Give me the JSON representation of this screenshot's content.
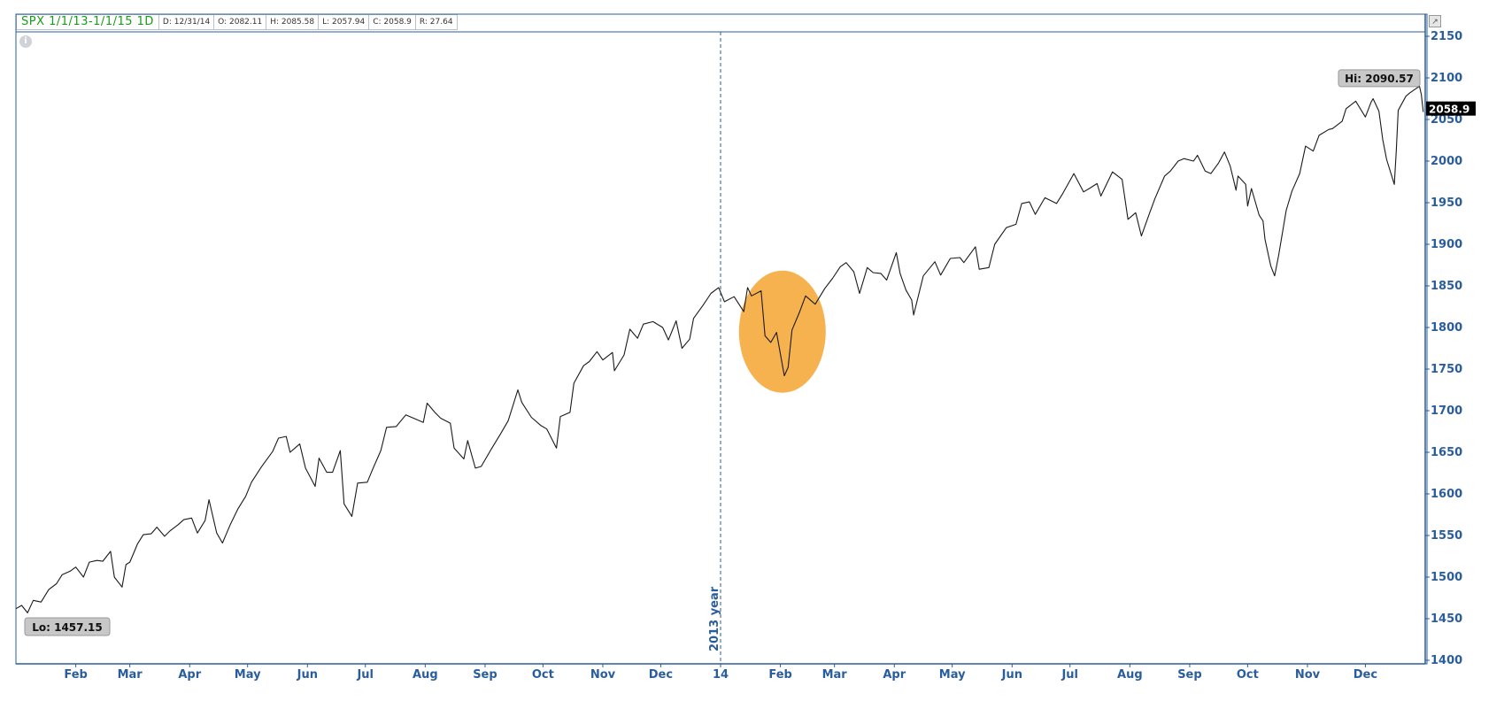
{
  "header": {
    "symbol_range": "SPX 1/1/13-1/1/15 1D",
    "date": "D: 12/31/14",
    "open": "O: 2082.11",
    "high": "H: 2085.58",
    "low": "L: 2057.94",
    "close": "C: 2058.9",
    "range": "R: 27.64"
  },
  "markers": {
    "hi_label": "Hi: 2090.57",
    "lo_label": "Lo: 1457.15",
    "last_price": "2058.9",
    "divider_label": "2013 year"
  },
  "colors": {
    "axis": "#2a5d9c",
    "line": "#1a1a1a",
    "highlight": "#f6a531",
    "header_green": "#1a9a1a"
  },
  "chart_data": {
    "type": "line",
    "title": "",
    "xlabel": "",
    "ylabel": "",
    "ylim": [
      1400,
      2150
    ],
    "yticks": [
      1400,
      1450,
      1500,
      1550,
      1600,
      1650,
      1700,
      1750,
      1800,
      1850,
      1900,
      1950,
      2000,
      2050,
      2100,
      2150
    ],
    "x_range": [
      "2013-01-01",
      "2015-01-01"
    ],
    "xtick_labels": [
      {
        "date": "2013-02-01",
        "label": "Feb"
      },
      {
        "date": "2013-03-01",
        "label": "Mar"
      },
      {
        "date": "2013-04-01",
        "label": "Apr"
      },
      {
        "date": "2013-05-01",
        "label": "May"
      },
      {
        "date": "2013-06-01",
        "label": "Jun"
      },
      {
        "date": "2013-07-01",
        "label": "Jul"
      },
      {
        "date": "2013-08-01",
        "label": "Aug"
      },
      {
        "date": "2013-09-01",
        "label": "Sep"
      },
      {
        "date": "2013-10-01",
        "label": "Oct"
      },
      {
        "date": "2013-11-01",
        "label": "Nov"
      },
      {
        "date": "2013-12-01",
        "label": "Dec"
      },
      {
        "date": "2014-01-01",
        "label": "14"
      },
      {
        "date": "2014-02-01",
        "label": "Feb"
      },
      {
        "date": "2014-03-01",
        "label": "Mar"
      },
      {
        "date": "2014-04-01",
        "label": "Apr"
      },
      {
        "date": "2014-05-01",
        "label": "May"
      },
      {
        "date": "2014-06-01",
        "label": "Jun"
      },
      {
        "date": "2014-07-01",
        "label": "Jul"
      },
      {
        "date": "2014-08-01",
        "label": "Aug"
      },
      {
        "date": "2014-09-01",
        "label": "Sep"
      },
      {
        "date": "2014-10-01",
        "label": "Oct"
      },
      {
        "date": "2014-11-01",
        "label": "Nov"
      },
      {
        "date": "2014-12-01",
        "label": "Dec"
      }
    ],
    "series": [
      {
        "points": [
          [
            "2013-01-01",
            1462
          ],
          [
            "2013-01-04",
            1466
          ],
          [
            "2013-01-07",
            1457
          ],
          [
            "2013-01-10",
            1472
          ],
          [
            "2013-01-14",
            1470
          ],
          [
            "2013-01-18",
            1485
          ],
          [
            "2013-01-22",
            1492
          ],
          [
            "2013-01-25",
            1503
          ],
          [
            "2013-01-29",
            1507
          ],
          [
            "2013-02-01",
            1512
          ],
          [
            "2013-02-05",
            1500
          ],
          [
            "2013-02-08",
            1518
          ],
          [
            "2013-02-12",
            1520
          ],
          [
            "2013-02-15",
            1519
          ],
          [
            "2013-02-19",
            1531
          ],
          [
            "2013-02-21",
            1500
          ],
          [
            "2013-02-25",
            1488
          ],
          [
            "2013-02-27",
            1515
          ],
          [
            "2013-03-01",
            1518
          ],
          [
            "2013-03-05",
            1540
          ],
          [
            "2013-03-08",
            1551
          ],
          [
            "2013-03-12",
            1552
          ],
          [
            "2013-03-15",
            1560
          ],
          [
            "2013-03-19",
            1549
          ],
          [
            "2013-03-22",
            1556
          ],
          [
            "2013-03-26",
            1563
          ],
          [
            "2013-03-29",
            1569
          ],
          [
            "2013-04-02",
            1571
          ],
          [
            "2013-04-05",
            1553
          ],
          [
            "2013-04-09",
            1568
          ],
          [
            "2013-04-11",
            1593
          ],
          [
            "2013-04-15",
            1553
          ],
          [
            "2013-04-18",
            1541
          ],
          [
            "2013-04-22",
            1563
          ],
          [
            "2013-04-26",
            1582
          ],
          [
            "2013-04-30",
            1597
          ],
          [
            "2013-05-03",
            1614
          ],
          [
            "2013-05-08",
            1632
          ],
          [
            "2013-05-14",
            1651
          ],
          [
            "2013-05-17",
            1667
          ],
          [
            "2013-05-21",
            1669
          ],
          [
            "2013-05-23",
            1650
          ],
          [
            "2013-05-28",
            1660
          ],
          [
            "2013-05-31",
            1631
          ],
          [
            "2013-06-05",
            1609
          ],
          [
            "2013-06-07",
            1643
          ],
          [
            "2013-06-11",
            1626
          ],
          [
            "2013-06-14",
            1626
          ],
          [
            "2013-06-18",
            1652
          ],
          [
            "2013-06-20",
            1588
          ],
          [
            "2013-06-24",
            1573
          ],
          [
            "2013-06-27",
            1613
          ],
          [
            "2013-07-02",
            1614
          ],
          [
            "2013-07-05",
            1631
          ],
          [
            "2013-07-09",
            1652
          ],
          [
            "2013-07-12",
            1680
          ],
          [
            "2013-07-17",
            1681
          ],
          [
            "2013-07-22",
            1695
          ],
          [
            "2013-07-26",
            1691
          ],
          [
            "2013-07-31",
            1686
          ],
          [
            "2013-08-02",
            1709
          ],
          [
            "2013-08-06",
            1698
          ],
          [
            "2013-08-09",
            1691
          ],
          [
            "2013-08-14",
            1685
          ],
          [
            "2013-08-16",
            1655
          ],
          [
            "2013-08-21",
            1642
          ],
          [
            "2013-08-23",
            1664
          ],
          [
            "2013-08-27",
            1631
          ],
          [
            "2013-08-30",
            1633
          ],
          [
            "2013-09-04",
            1653
          ],
          [
            "2013-09-09",
            1672
          ],
          [
            "2013-09-13",
            1688
          ],
          [
            "2013-09-18",
            1725
          ],
          [
            "2013-09-20",
            1710
          ],
          [
            "2013-09-25",
            1692
          ],
          [
            "2013-09-30",
            1682
          ],
          [
            "2013-10-03",
            1678
          ],
          [
            "2013-10-08",
            1655
          ],
          [
            "2013-10-10",
            1693
          ],
          [
            "2013-10-15",
            1698
          ],
          [
            "2013-10-17",
            1733
          ],
          [
            "2013-10-22",
            1754
          ],
          [
            "2013-10-25",
            1759
          ],
          [
            "2013-10-29",
            1771
          ],
          [
            "2013-11-01",
            1761
          ],
          [
            "2013-11-06",
            1770
          ],
          [
            "2013-11-07",
            1748
          ],
          [
            "2013-11-12",
            1767
          ],
          [
            "2013-11-15",
            1798
          ],
          [
            "2013-11-19",
            1787
          ],
          [
            "2013-11-22",
            1804
          ],
          [
            "2013-11-27",
            1807
          ],
          [
            "2013-12-02",
            1800
          ],
          [
            "2013-12-05",
            1785
          ],
          [
            "2013-12-09",
            1808
          ],
          [
            "2013-12-12",
            1775
          ],
          [
            "2013-12-16",
            1786
          ],
          [
            "2013-12-18",
            1811
          ],
          [
            "2013-12-23",
            1827
          ],
          [
            "2013-12-27",
            1841
          ],
          [
            "2013-12-31",
            1848
          ],
          [
            "2014-01-03",
            1831
          ],
          [
            "2014-01-08",
            1837
          ],
          [
            "2014-01-13",
            1819
          ],
          [
            "2014-01-15",
            1848
          ],
          [
            "2014-01-17",
            1838
          ],
          [
            "2014-01-22",
            1844
          ],
          [
            "2014-01-24",
            1790
          ],
          [
            "2014-01-27",
            1782
          ],
          [
            "2014-01-30",
            1794
          ],
          [
            "2014-02-03",
            1742
          ],
          [
            "2014-02-05",
            1752
          ],
          [
            "2014-02-07",
            1797
          ],
          [
            "2014-02-11",
            1819
          ],
          [
            "2014-02-14",
            1838
          ],
          [
            "2014-02-19",
            1828
          ],
          [
            "2014-02-24",
            1847
          ],
          [
            "2014-02-28",
            1859
          ],
          [
            "2014-03-04",
            1873
          ],
          [
            "2014-03-07",
            1878
          ],
          [
            "2014-03-11",
            1867
          ],
          [
            "2014-03-14",
            1841
          ],
          [
            "2014-03-18",
            1872
          ],
          [
            "2014-03-21",
            1866
          ],
          [
            "2014-03-25",
            1865
          ],
          [
            "2014-03-28",
            1857
          ],
          [
            "2014-04-02",
            1890
          ],
          [
            "2014-04-04",
            1865
          ],
          [
            "2014-04-07",
            1845
          ],
          [
            "2014-04-10",
            1833
          ],
          [
            "2014-04-11",
            1815
          ],
          [
            "2014-04-16",
            1862
          ],
          [
            "2014-04-22",
            1879
          ],
          [
            "2014-04-25",
            1863
          ],
          [
            "2014-04-30",
            1883
          ],
          [
            "2014-05-05",
            1884
          ],
          [
            "2014-05-07",
            1878
          ],
          [
            "2014-05-13",
            1897
          ],
          [
            "2014-05-15",
            1870
          ],
          [
            "2014-05-20",
            1872
          ],
          [
            "2014-05-23",
            1900
          ],
          [
            "2014-05-29",
            1920
          ],
          [
            "2014-06-03",
            1924
          ],
          [
            "2014-06-06",
            1949
          ],
          [
            "2014-06-10",
            1951
          ],
          [
            "2014-06-13",
            1936
          ],
          [
            "2014-06-18",
            1956
          ],
          [
            "2014-06-24",
            1949
          ],
          [
            "2014-06-27",
            1960
          ],
          [
            "2014-07-03",
            1985
          ],
          [
            "2014-07-08",
            1963
          ],
          [
            "2014-07-11",
            1967
          ],
          [
            "2014-07-15",
            1973
          ],
          [
            "2014-07-17",
            1958
          ],
          [
            "2014-07-23",
            1987
          ],
          [
            "2014-07-28",
            1978
          ],
          [
            "2014-07-31",
            1930
          ],
          [
            "2014-08-04",
            1938
          ],
          [
            "2014-08-07",
            1910
          ],
          [
            "2014-08-11",
            1936
          ],
          [
            "2014-08-14",
            1955
          ],
          [
            "2014-08-19",
            1982
          ],
          [
            "2014-08-22",
            1988
          ],
          [
            "2014-08-26",
            2000
          ],
          [
            "2014-08-29",
            2003
          ],
          [
            "2014-09-03",
            2000
          ],
          [
            "2014-09-05",
            2007
          ],
          [
            "2014-09-09",
            1988
          ],
          [
            "2014-09-12",
            1985
          ],
          [
            "2014-09-16",
            1998
          ],
          [
            "2014-09-19",
            2011
          ],
          [
            "2014-09-22",
            1994
          ],
          [
            "2014-09-25",
            1965
          ],
          [
            "2014-09-26",
            1982
          ],
          [
            "2014-09-30",
            1972
          ],
          [
            "2014-10-01",
            1946
          ],
          [
            "2014-10-03",
            1967
          ],
          [
            "2014-10-07",
            1935
          ],
          [
            "2014-10-09",
            1928
          ],
          [
            "2014-10-10",
            1906
          ],
          [
            "2014-10-13",
            1874
          ],
          [
            "2014-10-15",
            1862
          ],
          [
            "2014-10-17",
            1886
          ],
          [
            "2014-10-21",
            1941
          ],
          [
            "2014-10-24",
            1964
          ],
          [
            "2014-10-28",
            1985
          ],
          [
            "2014-10-31",
            2018
          ],
          [
            "2014-11-04",
            2012
          ],
          [
            "2014-11-07",
            2031
          ],
          [
            "2014-11-12",
            2038
          ],
          [
            "2014-11-14",
            2039
          ],
          [
            "2014-11-19",
            2048
          ],
          [
            "2014-11-21",
            2063
          ],
          [
            "2014-11-26",
            2072
          ],
          [
            "2014-12-01",
            2053
          ],
          [
            "2014-12-04",
            2071
          ],
          [
            "2014-12-05",
            2075
          ],
          [
            "2014-12-08",
            2060
          ],
          [
            "2014-12-10",
            2026
          ],
          [
            "2014-12-12",
            2002
          ],
          [
            "2014-12-16",
            1972
          ],
          [
            "2014-12-17",
            2012
          ],
          [
            "2014-12-18",
            2061
          ],
          [
            "2014-12-22",
            2078
          ],
          [
            "2014-12-24",
            2082
          ],
          [
            "2014-12-29",
            2090
          ],
          [
            "2014-12-30",
            2080
          ],
          [
            "2014-12-31",
            2058.9
          ]
        ]
      }
    ]
  }
}
